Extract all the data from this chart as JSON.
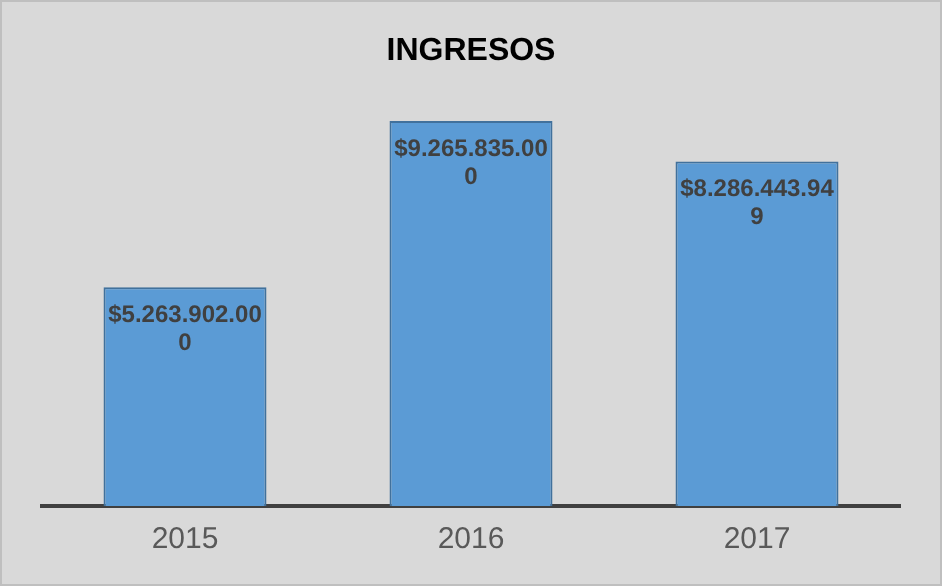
{
  "chart_data": {
    "type": "bar",
    "title": "INGRESOS",
    "categories": [
      "2015",
      "2016",
      "2017"
    ],
    "values": [
      5263902000,
      9265835000,
      8286443949
    ],
    "value_labels": [
      "$5.263.902.000",
      "$9.265.835.000",
      "$8.286.443.949"
    ],
    "color": "#5b9bd5",
    "grid": false,
    "legend": false
  }
}
